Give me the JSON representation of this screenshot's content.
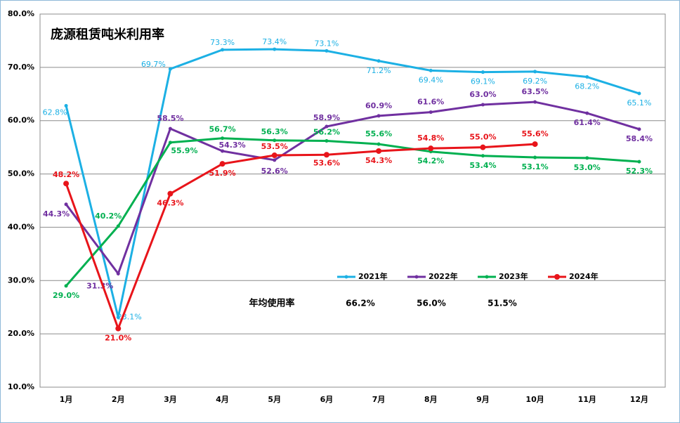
{
  "chart_data": {
    "type": "line",
    "title": "庞源租赁吨米利用率",
    "categories": [
      "1月",
      "2月",
      "3月",
      "4月",
      "5月",
      "6月",
      "7月",
      "8月",
      "9月",
      "10月",
      "11月",
      "12月"
    ],
    "series": [
      {
        "name": "2021年",
        "color": "#1cb0e4",
        "values": [
          62.8,
          23.1,
          69.7,
          73.3,
          73.4,
          73.1,
          71.2,
          69.4,
          69.1,
          69.2,
          68.2,
          65.1
        ],
        "value_labels": [
          "62.8%",
          "23.1%",
          "69.7%",
          "73.3%",
          "73.4%",
          "73.1%",
          "71.2%",
          "69.4%",
          "69.1%",
          "69.2%",
          "68.2%",
          "65.1%"
        ]
      },
      {
        "name": "2022年",
        "color": "#7030a0",
        "values": [
          44.3,
          31.3,
          58.5,
          54.3,
          52.6,
          58.9,
          60.9,
          61.6,
          63.0,
          63.5,
          61.4,
          58.4
        ],
        "value_labels": [
          "44.3%",
          "31.3%",
          "58.5%",
          "54.3%",
          "52.6%",
          "58.9%",
          "60.9%",
          "61.6%",
          "63.0%",
          "63.5%",
          "61.4%",
          "58.4%"
        ]
      },
      {
        "name": "2023年",
        "color": "#00b050",
        "values": [
          29.0,
          40.2,
          55.9,
          56.7,
          56.3,
          56.2,
          55.6,
          54.2,
          53.4,
          53.1,
          53.0,
          52.3
        ],
        "value_labels": [
          "29.0%",
          "40.2%",
          "55.9%",
          "56.7%",
          "56.3%",
          "56.2%",
          "55.6%",
          "54.2%",
          "53.4%",
          "53.1%",
          "53.0%",
          "52.3%"
        ]
      },
      {
        "name": "2024年",
        "color": "#e8141a",
        "values": [
          48.2,
          21.0,
          46.3,
          51.9,
          53.5,
          53.6,
          54.3,
          54.8,
          55.0,
          55.6,
          null,
          null
        ],
        "value_labels": [
          "48.2%",
          "21.0%",
          "46.3%",
          "51.9%",
          "53.5%",
          "53.6%",
          "54.3%",
          "54.8%",
          "55.0%",
          "55.6%",
          null,
          null
        ]
      }
    ],
    "ylim": [
      10,
      80
    ],
    "yticks": [
      {
        "value": 10,
        "label": "10.0%"
      },
      {
        "value": 20,
        "label": "20.0%"
      },
      {
        "value": 30,
        "label": "30.0%"
      },
      {
        "value": 40,
        "label": "40.0%"
      },
      {
        "value": 50,
        "label": "50.0%"
      },
      {
        "value": 60,
        "label": "60.0%"
      },
      {
        "value": 70,
        "label": "70.0%"
      },
      {
        "value": 80,
        "label": "80.0%"
      }
    ],
    "grid": true,
    "legend": "inside",
    "annotation": {
      "label": "年均使用率",
      "values": [
        "66.2%",
        "56.0%",
        "51.5%"
      ]
    }
  }
}
